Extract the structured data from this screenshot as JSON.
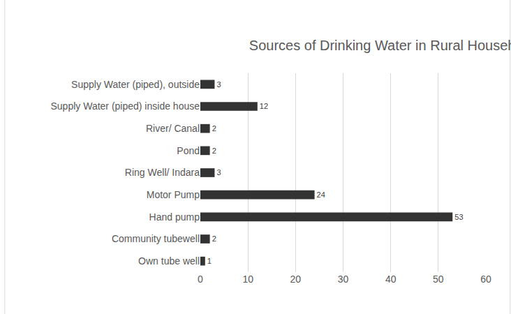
{
  "chart_data": {
    "type": "bar",
    "orientation": "horizontal",
    "title": "Sources of Drinking Water in Rural Household",
    "categories": [
      "Supply Water (piped), outside",
      "Supply Water (piped) inside house",
      "River/ Canal",
      "Pond",
      "Ring Well/ Indara",
      "Motor Pump",
      "Hand pump",
      "Community tubewell",
      "Own tube well"
    ],
    "values": [
      3,
      12,
      2,
      2,
      3,
      24,
      53,
      2,
      1
    ],
    "color": "#333333",
    "xlim": [
      0,
      60
    ],
    "xticks": [
      0,
      10,
      20,
      30,
      40,
      50,
      60
    ],
    "grid": true,
    "data_labels": true
  }
}
